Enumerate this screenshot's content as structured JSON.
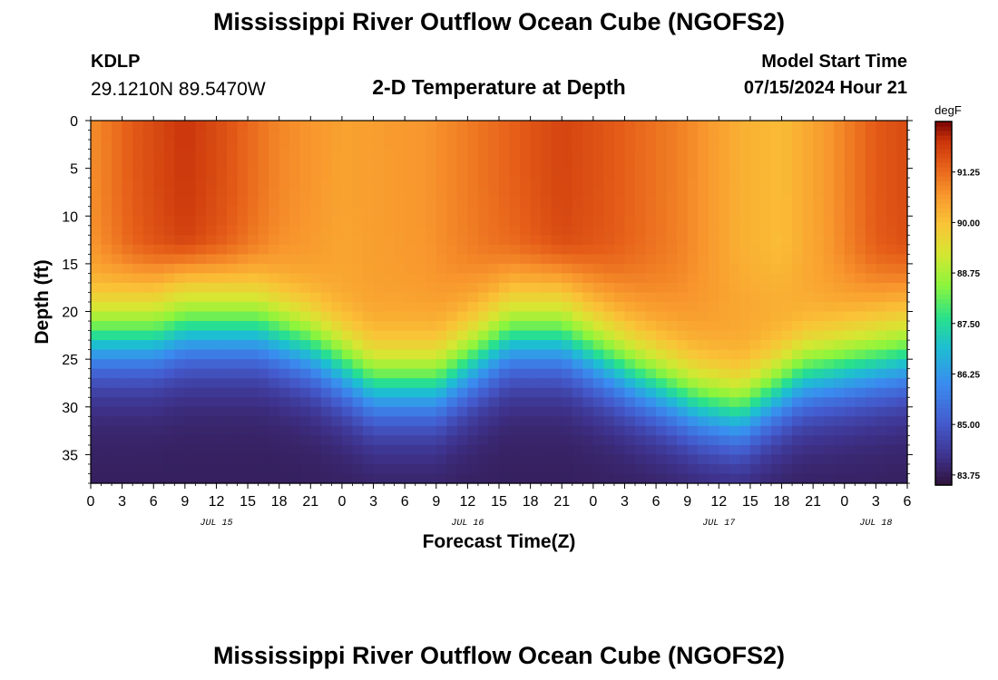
{
  "header": {
    "title": "Mississippi River Outflow Ocean Cube (NGOFS2)",
    "station": "KDLP",
    "coords": "29.1210N  89.5470W",
    "subtitle": "2-D Temperature at Depth",
    "model_label": "Model Start Time",
    "model_time": "07/15/2024 Hour 21"
  },
  "footer": {
    "title": "Mississippi River Outflow Ocean Cube (NGOFS2)"
  },
  "chart_data": {
    "type": "heatmap",
    "title": "2-D Temperature at Depth",
    "xlabel": "Forecast Time(Z)",
    "ylabel": "Depth (ft)",
    "xlim": [
      0,
      78
    ],
    "ylim": [
      0,
      38
    ],
    "x_ticks": [
      0,
      3,
      6,
      9,
      12,
      15,
      18,
      21,
      24,
      27,
      30,
      33,
      36,
      39,
      42,
      45,
      48,
      51,
      54,
      57,
      60,
      63,
      66,
      69,
      72,
      75,
      78
    ],
    "x_tick_labels": [
      "0",
      "3",
      "6",
      "9",
      "12",
      "15",
      "18",
      "21",
      "0",
      "3",
      "6",
      "9",
      "12",
      "15",
      "18",
      "21",
      "0",
      "3",
      "6",
      "9",
      "12",
      "15",
      "18",
      "21",
      "0",
      "3",
      "6"
    ],
    "date_labels": [
      {
        "x": 12,
        "label": "JUL 15"
      },
      {
        "x": 36,
        "label": "JUL 16"
      },
      {
        "x": 60,
        "label": "JUL 17"
      },
      {
        "x": 75,
        "label": "JUL 18"
      }
    ],
    "y_ticks": [
      0,
      5,
      10,
      15,
      20,
      25,
      30,
      35
    ],
    "y_tick_labels": [
      "0",
      "5",
      "10",
      "15",
      "20",
      "25",
      "30",
      "35"
    ],
    "colorbar": {
      "unit": "degF",
      "min": 83.5,
      "max": 92.5,
      "ticks": [
        91.25,
        90.0,
        88.75,
        87.5,
        86.25,
        85.0,
        83.75
      ],
      "tick_labels": [
        "91.25",
        "90.00",
        "88.75",
        "87.50",
        "86.25",
        "85.00",
        "83.75"
      ]
    },
    "thermocline_depth_ft": [
      {
        "hour": 0,
        "depth": 23
      },
      {
        "hour": 6,
        "depth": 23
      },
      {
        "hour": 9,
        "depth": 22
      },
      {
        "hour": 16,
        "depth": 22
      },
      {
        "hour": 21,
        "depth": 24
      },
      {
        "hour": 27,
        "depth": 28
      },
      {
        "hour": 33,
        "depth": 28
      },
      {
        "hour": 40,
        "depth": 23
      },
      {
        "hour": 45,
        "depth": 23
      },
      {
        "hour": 52,
        "depth": 27
      },
      {
        "hour": 58,
        "depth": 30
      },
      {
        "hour": 62,
        "depth": 31
      },
      {
        "hour": 68,
        "depth": 27
      },
      {
        "hour": 78,
        "depth": 25
      }
    ],
    "surface_temp_degF": [
      {
        "hour": 0,
        "temp": 90.8
      },
      {
        "hour": 4,
        "temp": 91.5
      },
      {
        "hour": 9,
        "temp": 92.0
      },
      {
        "hour": 13,
        "temp": 91.6
      },
      {
        "hour": 18,
        "temp": 90.9
      },
      {
        "hour": 24,
        "temp": 90.5
      },
      {
        "hour": 32,
        "temp": 90.7
      },
      {
        "hour": 39,
        "temp": 91.3
      },
      {
        "hour": 45,
        "temp": 91.8
      },
      {
        "hour": 50,
        "temp": 91.5
      },
      {
        "hour": 56,
        "temp": 91.0
      },
      {
        "hour": 62,
        "temp": 90.3
      },
      {
        "hour": 66,
        "temp": 90.1
      },
      {
        "hour": 70,
        "temp": 90.6
      },
      {
        "hour": 75,
        "temp": 91.5
      },
      {
        "hour": 78,
        "temp": 91.7
      }
    ],
    "mixed_layer_temp_degF": 90.7,
    "bottom_temp_degF": 83.8
  }
}
